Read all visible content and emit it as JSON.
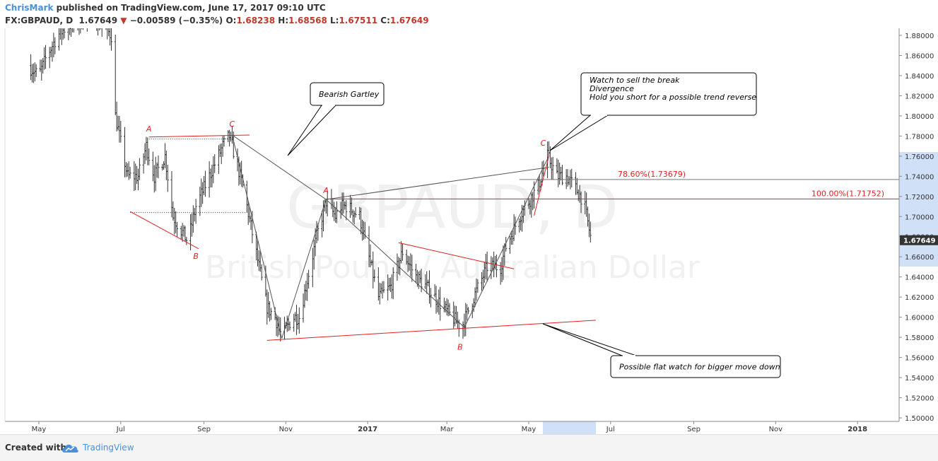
{
  "header": {
    "author": "ChrisMark",
    "published": "published on TradingView.com, June 17, 2017 09:10 UTC",
    "symbol": "FX:GBPAUD, D",
    "last": "1.67649",
    "change": "−0.00589 (−0.35%)",
    "o_label": "O:",
    "o_value": "1.68238",
    "h_label": "H:",
    "h_value": "1.68568",
    "l_label": "L:",
    "l_value": "1.67511",
    "c_label": "C:",
    "c_value": "1.67649"
  },
  "watermark": {
    "line1": "GBPAUD, D",
    "line2": "British Pound / Australian Dollar"
  },
  "footer": {
    "created_with": "Created with",
    "brand": "TradingView"
  },
  "colors": {
    "accent": "#4a90d9",
    "pattern": "#e02020",
    "bar": "#333333",
    "watermark": "#f0f0f0"
  },
  "chart_data": {
    "type": "ohlc",
    "timeframe": "D",
    "ylim": [
      1.5,
      1.88
    ],
    "y_ticks": [
      1.5,
      1.52,
      1.54,
      1.56,
      1.58,
      1.6,
      1.62,
      1.64,
      1.66,
      1.68,
      1.7,
      1.72,
      1.74,
      1.76,
      1.78,
      1.8,
      1.82,
      1.84,
      1.86,
      1.88
    ],
    "y_tick_labels": [
      "1.50000",
      "1.52000",
      "1.54000",
      "1.56000",
      "1.58000",
      "1.60000",
      "1.62000",
      "1.64000",
      "1.66000",
      "1.68000",
      "1.70000",
      "1.72000",
      "1.74000",
      "1.76000",
      "1.78000",
      "1.80000",
      "1.82000",
      "1.84000",
      "1.86000",
      "1.88000"
    ],
    "x_ticks": [
      "May",
      "Jul",
      "Sep",
      "Nov",
      "2017",
      "Mar",
      "May",
      "Jul",
      "Sep",
      "Nov",
      "2018"
    ],
    "last_price": 1.67649,
    "last_price_label": "1.67649",
    "price_path": [
      [
        "2016-04-23",
        1.85
      ],
      [
        "2016-05-01",
        1.84
      ],
      [
        "2016-05-07",
        1.86
      ],
      [
        "2016-05-15",
        1.88
      ],
      [
        "2016-05-23",
        1.89
      ],
      [
        "2016-06-10",
        1.9
      ],
      [
        "2016-06-24",
        1.88
      ],
      [
        "2016-06-27",
        1.8
      ],
      [
        "2016-07-06",
        1.74
      ],
      [
        "2016-07-14",
        1.74
      ],
      [
        "2016-07-20",
        1.77
      ],
      [
        "2016-07-26",
        1.74
      ],
      [
        "2016-08-03",
        1.76
      ],
      [
        "2016-08-09",
        1.7
      ],
      [
        "2016-08-20",
        1.675
      ],
      [
        "2016-08-26",
        1.71
      ],
      [
        "2016-09-05",
        1.74
      ],
      [
        "2016-09-15",
        1.77
      ],
      [
        "2016-09-20",
        1.78
      ],
      [
        "2016-09-30",
        1.73
      ],
      [
        "2016-10-06",
        1.69
      ],
      [
        "2016-10-18",
        1.61
      ],
      [
        "2016-10-24",
        1.6
      ],
      [
        "2016-10-29",
        1.58
      ],
      [
        "2016-11-06",
        1.6
      ],
      [
        "2016-11-11",
        1.6
      ],
      [
        "2016-11-24",
        1.68
      ],
      [
        "2016-12-01",
        1.715
      ],
      [
        "2016-12-08",
        1.7
      ],
      [
        "2016-12-12",
        1.71
      ],
      [
        "2016-12-17",
        1.71
      ],
      [
        "2016-12-26",
        1.7
      ],
      [
        "2016-12-31",
        1.67
      ],
      [
        "2017-01-09",
        1.62
      ],
      [
        "2017-01-18",
        1.63
      ],
      [
        "2017-01-27",
        1.665
      ],
      [
        "2017-02-06",
        1.64
      ],
      [
        "2017-02-14",
        1.63
      ],
      [
        "2017-02-26",
        1.61
      ],
      [
        "2017-03-12",
        1.59
      ],
      [
        "2017-03-21",
        1.62
      ],
      [
        "2017-03-31",
        1.65
      ],
      [
        "2017-04-10",
        1.65
      ],
      [
        "2017-04-14",
        1.67
      ],
      [
        "2017-04-24",
        1.7
      ],
      [
        "2017-05-08",
        1.73
      ],
      [
        "2017-05-15",
        1.76
      ],
      [
        "2017-05-22",
        1.74
      ],
      [
        "2017-05-29",
        1.74
      ],
      [
        "2017-06-04",
        1.73
      ],
      [
        "2017-06-11",
        1.715
      ],
      [
        "2017-06-16",
        1.68
      ]
    ],
    "fibonacci_levels": [
      {
        "label": "78.60%(1.73679)",
        "value": 1.73679
      },
      {
        "label": "100.00%(1.71752)",
        "value": 1.71752
      }
    ],
    "pattern_labels": [
      {
        "text": "A",
        "date": "2016-07-22",
        "price": 1.776
      },
      {
        "text": "C",
        "date": "2016-09-22",
        "price": 1.781
      },
      {
        "text": "B",
        "date": "2016-08-26",
        "price": 1.672
      },
      {
        "text": "A",
        "date": "2016-12-01",
        "price": 1.715
      },
      {
        "text": "B",
        "date": "2017-03-14",
        "price": 1.589
      },
      {
        "text": "C",
        "date": "2017-05-16",
        "price": 1.762
      }
    ],
    "callouts": [
      {
        "lines": [
          "Bearish Gartley"
        ]
      },
      {
        "lines": [
          "Watch to sell the break",
          "Divergence",
          "Hold you short for a possible trend reverse"
        ]
      },
      {
        "lines": [
          "Possible flat watch for bigger move down"
        ]
      }
    ]
  }
}
